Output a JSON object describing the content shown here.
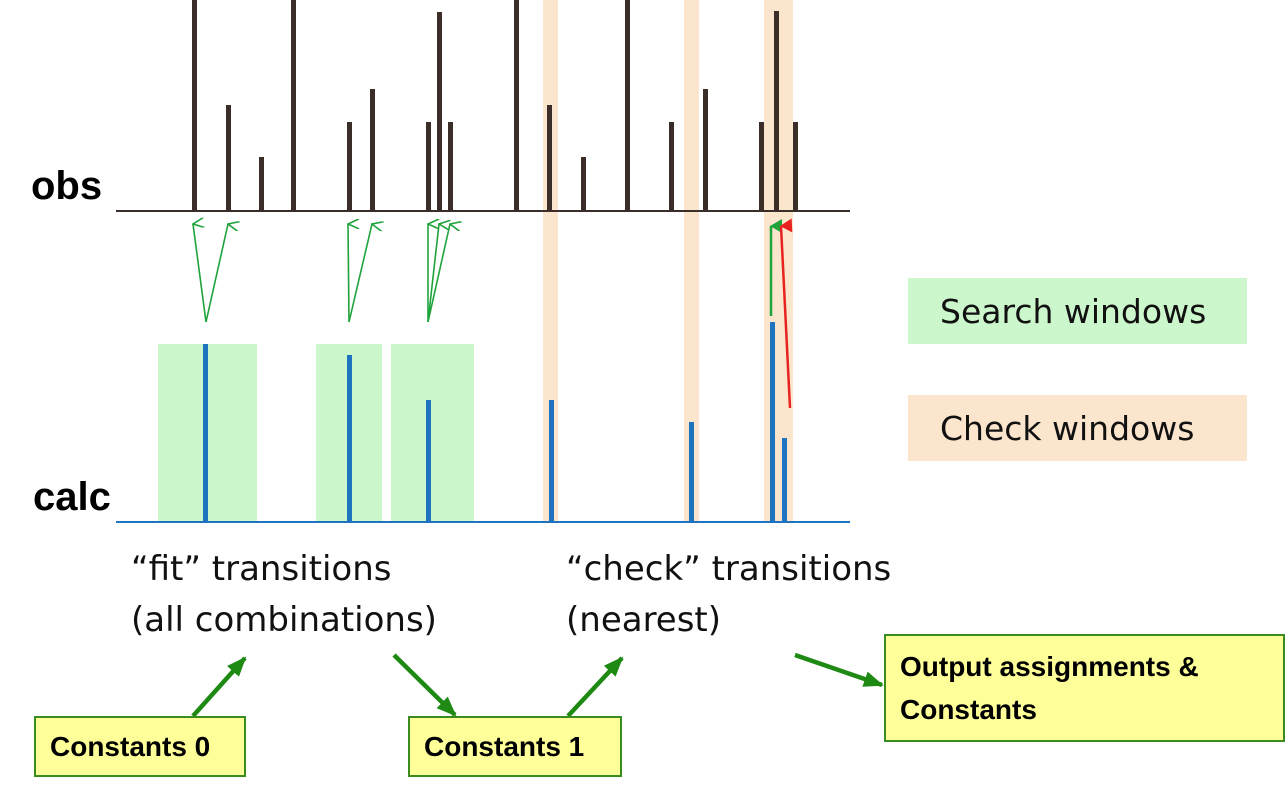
{
  "labels": {
    "obs": "obs",
    "calc": "calc"
  },
  "captions": {
    "fit_line1": "“fit” transitions",
    "fit_line2": "(all combinations)",
    "check_line1": "“check” transitions",
    "check_line2": "(nearest)"
  },
  "legend": {
    "search": "Search windows",
    "check": "Check windows"
  },
  "boxes": {
    "constants0": "Constants 0",
    "constants1": "Constants 1",
    "output_line1": "Output assignments &",
    "output_line2": "Constants"
  },
  "colors": {
    "search_window": "#ccf7cc",
    "check_window": "#fbe5cc",
    "obs_line": "#3b2e28",
    "calc_line": "#1f74c0",
    "green_arrow": "#1fa33b",
    "red_arrow": "#e8231f",
    "box_fill": "#ffff99",
    "box_border": "#3a8c1f",
    "flow_arrow": "#1e8a14"
  }
}
